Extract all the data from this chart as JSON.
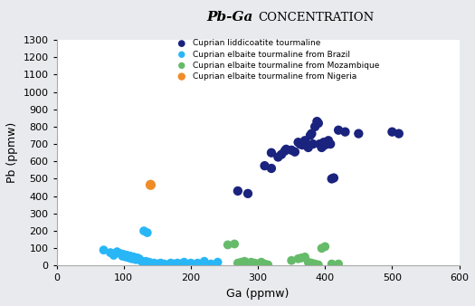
{
  "title_part1": "Pb-Ga ",
  "title_part2": "Concentration",
  "xlabel": "Ga (ppmw)",
  "ylabel": "Pb (ppmw)",
  "xlim": [
    0,
    600
  ],
  "ylim": [
    0,
    1300
  ],
  "xticks": [
    0,
    100,
    200,
    300,
    400,
    500,
    600
  ],
  "yticks": [
    0,
    100,
    200,
    300,
    400,
    500,
    600,
    700,
    800,
    900,
    1000,
    1100,
    1200,
    1300
  ],
  "background_color": "#e8eaed",
  "plot_bg_color": "#ffffff",
  "series": [
    {
      "label": "Cuprian liddicoatite tourmaline",
      "color": "#1a237e",
      "marker_size": 55,
      "ga": [
        270,
        285,
        310,
        320,
        330,
        340,
        342,
        350,
        355,
        360,
        363,
        366,
        370,
        373,
        375,
        378,
        380,
        382,
        385,
        388,
        390,
        392,
        395,
        398,
        400,
        402,
        405,
        408,
        410,
        413,
        420,
        430,
        450,
        500,
        510,
        320,
        335
      ],
      "pb": [
        430,
        415,
        575,
        560,
        625,
        660,
        670,
        665,
        655,
        710,
        700,
        695,
        720,
        690,
        680,
        750,
        760,
        700,
        800,
        830,
        820,
        700,
        680,
        710,
        695,
        710,
        720,
        700,
        500,
        505,
        780,
        770,
        760,
        770,
        760,
        650,
        640
      ]
    },
    {
      "label": "Cuprian elbaite tourmaline from Brazil",
      "color": "#29b6f6",
      "marker_size": 50,
      "ga": [
        70,
        80,
        85,
        90,
        95,
        98,
        100,
        103,
        105,
        108,
        110,
        112,
        115,
        118,
        120,
        123,
        125,
        127,
        130,
        133,
        135,
        138,
        140,
        145,
        150,
        155,
        160,
        165,
        170,
        175,
        180,
        185,
        190,
        200,
        210,
        220,
        230,
        240,
        135,
        130
      ],
      "pb": [
        90,
        75,
        60,
        80,
        70,
        55,
        65,
        50,
        60,
        45,
        55,
        40,
        50,
        35,
        45,
        40,
        30,
        25,
        20,
        25,
        15,
        20,
        10,
        15,
        10,
        15,
        10,
        5,
        15,
        10,
        15,
        10,
        20,
        15,
        15,
        25,
        10,
        20,
        190,
        200
      ]
    },
    {
      "label": "Cuprian elbaite tourmaline from Mozambique",
      "color": "#66bb6a",
      "marker_size": 50,
      "ga": [
        255,
        265,
        270,
        275,
        280,
        285,
        290,
        295,
        300,
        305,
        310,
        315,
        350,
        360,
        365,
        370,
        375,
        380,
        385,
        390,
        395,
        400,
        410,
        420
      ],
      "pb": [
        120,
        125,
        15,
        20,
        25,
        15,
        20,
        15,
        10,
        20,
        10,
        5,
        30,
        40,
        45,
        50,
        20,
        15,
        10,
        5,
        100,
        110,
        10,
        10
      ]
    },
    {
      "label": "Cuprian elbaite tourmaline from Nigeria",
      "color": "#ef8c28",
      "marker_size": 65,
      "ga": [
        140
      ],
      "pb": [
        465
      ]
    }
  ]
}
